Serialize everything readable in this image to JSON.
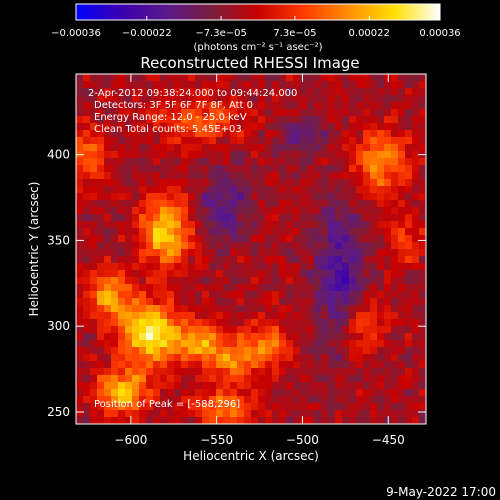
{
  "chart_data": {
    "type": "heatmap",
    "title": "Reconstructed RHESSI Image",
    "xlabel": "Heliocentric X (arcsec)",
    "ylabel": "Heliocentric Y (arcsec)",
    "xlim": [
      -632,
      -428
    ],
    "ylim": [
      243,
      447
    ],
    "xticks": [
      -600,
      -550,
      -500,
      -450
    ],
    "xtick_labels": [
      "−600",
      "−550",
      "−500",
      "−450"
    ],
    "yticks": [
      250,
      300,
      350,
      400
    ],
    "ytick_labels": [
      "250",
      "300",
      "350",
      "400"
    ],
    "colorbar": {
      "min": -0.00036,
      "max": 0.00036,
      "ticks": [
        -0.00036,
        -0.00022,
        -7.3e-05,
        7.3e-05,
        0.00022,
        0.00036
      ],
      "tick_labels": [
        "−0.00036",
        "−0.00022",
        "−7.3e−05",
        "7.3e−05",
        "0.00022",
        "0.00036"
      ],
      "unit_label": "(photons cm⁻² s⁻¹ asec⁻²)",
      "colors": [
        "#0000ff",
        "#3a00b0",
        "#5a1a8a",
        "#7a1e3c",
        "#c80000",
        "#ff3a00",
        "#ff9000",
        "#ffe000",
        "#ffffff"
      ]
    },
    "sources": [
      {
        "x": -588,
        "y": 296,
        "sx": 12,
        "sy": 12,
        "amp": 0.00036
      },
      {
        "x": -580,
        "y": 355,
        "sx": 10,
        "sy": 14,
        "amp": 0.0003
      },
      {
        "x": -612,
        "y": 318,
        "sx": 9,
        "sy": 10,
        "amp": 0.00024
      },
      {
        "x": -605,
        "y": 262,
        "sx": 11,
        "sy": 9,
        "amp": 0.00028
      },
      {
        "x": -560,
        "y": 290,
        "sx": 9,
        "sy": 8,
        "amp": 0.00022
      },
      {
        "x": -540,
        "y": 280,
        "sx": 10,
        "sy": 9,
        "amp": 0.0002
      },
      {
        "x": -520,
        "y": 290,
        "sx": 9,
        "sy": 9,
        "amp": 0.00018
      },
      {
        "x": -545,
        "y": 252,
        "sx": 12,
        "sy": 7,
        "amp": 0.0002
      },
      {
        "x": -455,
        "y": 395,
        "sx": 12,
        "sy": 14,
        "amp": 0.0002
      },
      {
        "x": -465,
        "y": 300,
        "sx": 10,
        "sy": 12,
        "amp": 0.00014
      },
      {
        "x": -560,
        "y": 420,
        "sx": 18,
        "sy": 10,
        "amp": 0.00014
      },
      {
        "x": -625,
        "y": 400,
        "sx": 8,
        "sy": 12,
        "amp": 0.00016
      },
      {
        "x": -440,
        "y": 350,
        "sx": 8,
        "sy": 10,
        "amp": 0.00012
      },
      {
        "x": -478,
        "y": 330,
        "sx": 10,
        "sy": 30,
        "amp": -0.00018
      },
      {
        "x": -545,
        "y": 370,
        "sx": 10,
        "sy": 14,
        "amp": -0.00015
      },
      {
        "x": -500,
        "y": 410,
        "sx": 10,
        "sy": 8,
        "amp": -0.00012
      }
    ],
    "annotations": {
      "time_range": "2-Apr-2012 09:38:24.000 to 09:44:24.000",
      "detectors": "Detectors: 3F 5F 6F 7F 8F, Att 0",
      "energy": "Energy Range: 12.0 - 25.0 keV",
      "clean": "Clean     Total counts: 5.45E+03",
      "peak": "Position of Peak = [-588,296]"
    },
    "footer_date": "9-May-2022 17:00"
  }
}
